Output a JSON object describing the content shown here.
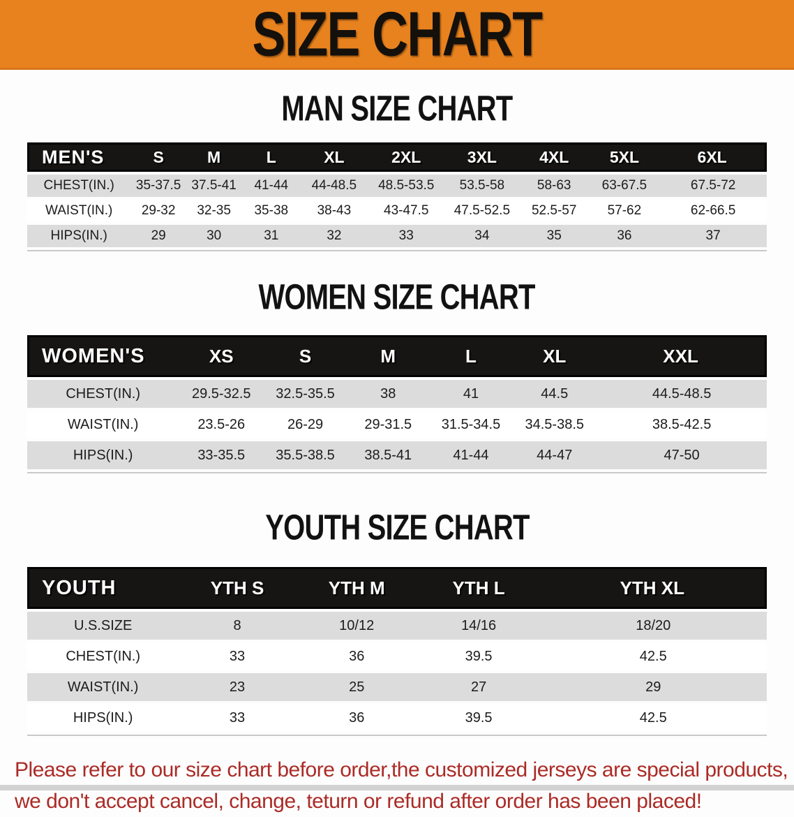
{
  "banner": {
    "title": "SIZE CHART",
    "bg_color": "#e8821e",
    "text_color": "#14100c"
  },
  "sections": [
    {
      "heading": "MAN SIZE CHART",
      "table": {
        "header": [
          "MEN'S",
          "S",
          "M",
          "L",
          "XL",
          "2XL",
          "3XL",
          "4XL",
          "5XL",
          "6XL"
        ],
        "rows": [
          [
            "CHEST(IN.)",
            "35-37.5",
            "37.5-41",
            "41-44",
            "44-48.5",
            "48.5-53.5",
            "53.5-58",
            "58-63",
            "63-67.5",
            "67.5-72"
          ],
          [
            "WAIST(IN.)",
            "29-32",
            "32-35",
            "35-38",
            "38-43",
            "43-47.5",
            "47.5-52.5",
            "52.5-57",
            "57-62",
            "62-66.5"
          ],
          [
            "HIPS(IN.)",
            "29",
            "30",
            "31",
            "32",
            "33",
            "34",
            "35",
            "36",
            "37"
          ]
        ]
      }
    },
    {
      "heading": "WOMEN SIZE CHART",
      "table": {
        "header": [
          "WOMEN'S",
          "XS",
          "S",
          "M",
          "L",
          "XL",
          "XXL"
        ],
        "rows": [
          [
            "CHEST(IN.)",
            "29.5-32.5",
            "32.5-35.5",
            "38",
            "41",
            "44.5",
            "44.5-48.5"
          ],
          [
            "WAIST(IN.)",
            "23.5-26",
            "26-29",
            "29-31.5",
            "31.5-34.5",
            "34.5-38.5",
            "38.5-42.5"
          ],
          [
            "HIPS(IN.)",
            "33-35.5",
            "35.5-38.5",
            "38.5-41",
            "41-44",
            "44-47",
            "47-50"
          ]
        ]
      }
    },
    {
      "heading": "YOUTH SIZE CHART",
      "table": {
        "header": [
          "YOUTH",
          "YTH S",
          "YTH M",
          "YTH L",
          "YTH XL"
        ],
        "rows": [
          [
            "U.S.SIZE",
            "8",
            "10/12",
            "14/16",
            "18/20"
          ],
          [
            "CHEST(IN.)",
            "33",
            "36",
            "39.5",
            "42.5"
          ],
          [
            "WAIST(IN.)",
            "23",
            "25",
            "27",
            "29"
          ],
          [
            "HIPS(IN.)",
            "33",
            "36",
            "39.5",
            "42.5"
          ]
        ]
      }
    }
  ],
  "footer": {
    "line1": "Please refer to our size chart before order,the customized jerseys are special products,",
    "line2": "we don't accept cancel, change, teturn or refund after order has been placed!",
    "text_color": "#ab2b26"
  }
}
